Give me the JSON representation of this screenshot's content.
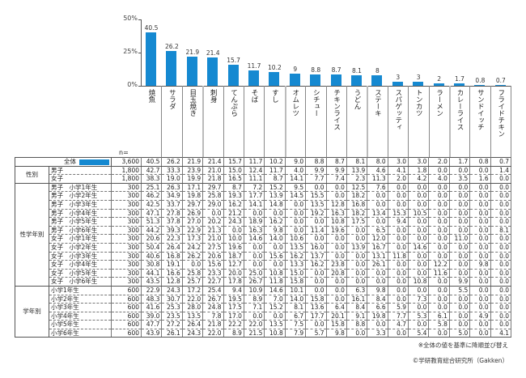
{
  "chart_data": {
    "type": "bar",
    "title": "",
    "ylim": [
      0,
      50
    ],
    "yticks": [
      "50%",
      "25%",
      "0%"
    ],
    "ytick_values": [
      50,
      25,
      0
    ],
    "categories": [
      "焼魚",
      "サラダ",
      "目玉焼き",
      "刺身",
      "てんぷら",
      "そば",
      "すし",
      "オムレツ",
      "シチュー",
      "チキンライス",
      "うどん",
      "ステーキ",
      "スパゲッティ",
      "トンカツ",
      "ラーメン",
      "カレーライス",
      "サンドイッチ",
      "フライドチキン"
    ],
    "values": [
      40.5,
      26.2,
      21.9,
      21.4,
      15.7,
      11.7,
      10.2,
      9.0,
      8.8,
      8.7,
      8.1,
      8.0,
      3.0,
      3.0,
      2.0,
      1.7,
      0.8,
      0.7
    ],
    "color": "#1589d1"
  },
  "table": {
    "n_header": "n=",
    "groups": [
      {
        "label": "",
        "rows": [
          {
            "label": "全体",
            "n": "3,600",
            "legend": true,
            "values": [
              "40.5",
              "26.2",
              "21.9",
              "21.4",
              "15.7",
              "11.7",
              "10.2",
              "9.0",
              "8.8",
              "8.7",
              "8.1",
              "8.0",
              "3.0",
              "3.0",
              "2.0",
              "1.7",
              "0.8",
              "0.7"
            ]
          }
        ]
      },
      {
        "label": "性別",
        "rows": [
          {
            "label": "男子",
            "n": "1,800",
            "values": [
              "42.7",
              "33.3",
              "23.9",
              "21.0",
              "15.0",
              "12.4",
              "11.7",
              "4.0",
              "9.9",
              "9.9",
              "13.9",
              "4.6",
              "4.1",
              "1.8",
              "0.0",
              "0.0",
              "0.0",
              "1.4"
            ]
          },
          {
            "label": "女子",
            "n": "1,800",
            "values": [
              "38.3",
              "19.0",
              "19.9",
              "21.8",
              "16.5",
              "11.1",
              "8.7",
              "14.1",
              "7.7",
              "7.4",
              "2.3",
              "11.3",
              "2.0",
              "4.2",
              "4.0",
              "3.5",
              "1.6",
              "0.0"
            ]
          }
        ]
      },
      {
        "label": "性学年別",
        "rows": [
          {
            "label": "男子　小学1年生",
            "n": "300",
            "values": [
              "25.1",
              "26.3",
              "17.1",
              "29.7",
              "8.7",
              "7.2",
              "15.2",
              "9.5",
              "0.0",
              "0.0",
              "12.5",
              "7.6",
              "0.0",
              "0.0",
              "0.0",
              "0.0",
              "0.0",
              "0.0"
            ]
          },
          {
            "label": "男子　小学2年生",
            "n": "300",
            "values": [
              "46.2",
              "34.9",
              "19.8",
              "25.8",
              "19.3",
              "17.7",
              "13.9",
              "14.5",
              "15.5",
              "0.0",
              "18.2",
              "0.0",
              "0.0",
              "0.0",
              "0.0",
              "0.0",
              "0.0",
              "0.0"
            ]
          },
          {
            "label": "男子　小学3年生",
            "n": "300",
            "values": [
              "42.5",
              "33.7",
              "29.7",
              "29.0",
              "16.2",
              "14.1",
              "14.8",
              "0.0",
              "13.5",
              "12.8",
              "16.8",
              "0.0",
              "0.0",
              "0.0",
              "0.0",
              "0.0",
              "0.0",
              "0.0"
            ]
          },
          {
            "label": "男子　小学4年生",
            "n": "300",
            "values": [
              "47.1",
              "27.8",
              "26.9",
              "0.0",
              "21.2",
              "0.0",
              "0.0",
              "0.0",
              "19.2",
              "16.3",
              "18.2",
              "13.4",
              "15.3",
              "10.5",
              "0.0",
              "0.0",
              "0.0",
              "0.0"
            ]
          },
          {
            "label": "男子　小学5年生",
            "n": "300",
            "values": [
              "51.3",
              "37.8",
              "27.0",
              "20.2",
              "24.3",
              "18.9",
              "16.2",
              "0.0",
              "0.0",
              "10.8",
              "17.5",
              "0.0",
              "9.4",
              "0.0",
              "0.0",
              "0.0",
              "0.0",
              "0.0"
            ]
          },
          {
            "label": "男子　小学6年生",
            "n": "300",
            "values": [
              "44.2",
              "39.3",
              "22.9",
              "21.3",
              "0.0",
              "16.3",
              "9.8",
              "0.0",
              "11.4",
              "19.6",
              "0.0",
              "6.5",
              "0.0",
              "0.0",
              "0.0",
              "0.0",
              "0.0",
              "8.1"
            ]
          },
          {
            "label": "女子　小学1年生",
            "n": "300",
            "values": [
              "20.6",
              "22.3",
              "17.3",
              "21.0",
              "10.0",
              "14.6",
              "14.0",
              "10.6",
              "0.0",
              "0.0",
              "0.0",
              "12.0",
              "0.0",
              "0.0",
              "0.0",
              "11.0",
              "0.0",
              "0.0"
            ]
          },
          {
            "label": "女子　小学2年生",
            "n": "300",
            "values": [
              "50.4",
              "26.4",
              "24.2",
              "27.5",
              "19.6",
              "0.0",
              "0.0",
              "13.5",
              "16.0",
              "0.0",
              "13.9",
              "16.7",
              "0.0",
              "14.6",
              "0.0",
              "0.0",
              "0.0",
              "0.0"
            ]
          },
          {
            "label": "女子　小学3年生",
            "n": "300",
            "values": [
              "40.6",
              "16.8",
              "26.2",
              "20.6",
              "18.7",
              "0.0",
              "15.6",
              "16.2",
              "13.7",
              "0.0",
              "0.0",
              "13.1",
              "11.8",
              "0.0",
              "0.0",
              "0.0",
              "0.0",
              "0.0"
            ]
          },
          {
            "label": "女子　小学4年生",
            "n": "300",
            "values": [
              "30.8",
              "19.1",
              "0.0",
              "15.6",
              "12.7",
              "0.0",
              "0.0",
              "13.3",
              "16.2",
              "23.8",
              "0.0",
              "26.1",
              "0.0",
              "0.0",
              "12.2",
              "0.0",
              "9.8",
              "0.0"
            ]
          },
          {
            "label": "女子　小学5年生",
            "n": "300",
            "values": [
              "44.1",
              "16.6",
              "25.8",
              "23.3",
              "20.0",
              "25.0",
              "10.8",
              "15.0",
              "0.0",
              "20.8",
              "0.0",
              "0.0",
              "0.0",
              "0.0",
              "11.6",
              "0.0",
              "0.0",
              "0.0"
            ]
          },
          {
            "label": "女子　小学6年生",
            "n": "300",
            "values": [
              "43.5",
              "12.8",
              "25.7",
              "22.7",
              "17.8",
              "26.7",
              "11.8",
              "15.8",
              "0.0",
              "0.0",
              "0.0",
              "0.0",
              "0.0",
              "10.8",
              "0.0",
              "9.9",
              "0.0",
              "0.0"
            ]
          }
        ]
      },
      {
        "label": "学年別",
        "rows": [
          {
            "label": "小学1年生",
            "n": "600",
            "values": [
              "22.9",
              "24.3",
              "17.2",
              "25.4",
              "9.4",
              "10.9",
              "14.6",
              "10.1",
              "0.0",
              "0.0",
              "6.3",
              "9.8",
              "0.0",
              "0.0",
              "0.0",
              "5.5",
              "0.0",
              "0.0"
            ]
          },
          {
            "label": "小学2年生",
            "n": "600",
            "values": [
              "48.3",
              "30.7",
              "22.0",
              "26.7",
              "19.5",
              "8.9",
              "7.0",
              "14.0",
              "15.8",
              "0.0",
              "16.1",
              "8.4",
              "0.0",
              "7.3",
              "0.0",
              "0.0",
              "0.0",
              "0.0"
            ]
          },
          {
            "label": "小学3年生",
            "n": "600",
            "values": [
              "41.6",
              "25.3",
              "28.0",
              "24.8",
              "17.5",
              "7.1",
              "15.2",
              "8.1",
              "13.6",
              "6.4",
              "8.4",
              "6.6",
              "5.9",
              "0.0",
              "0.0",
              "0.0",
              "0.0",
              "0.0"
            ]
          },
          {
            "label": "小学4年生",
            "n": "600",
            "values": [
              "39.0",
              "23.5",
              "13.5",
              "7.8",
              "17.0",
              "0.0",
              "0.0",
              "6.7",
              "17.7",
              "20.1",
              "9.1",
              "19.8",
              "7.7",
              "5.3",
              "6.1",
              "0.0",
              "4.9",
              "0.0"
            ]
          },
          {
            "label": "小学5年生",
            "n": "600",
            "values": [
              "47.7",
              "27.2",
              "26.4",
              "21.8",
              "22.2",
              "22.0",
              "13.5",
              "7.5",
              "0.0",
              "15.8",
              "8.8",
              "0.0",
              "4.7",
              "0.0",
              "5.8",
              "0.0",
              "0.0",
              "0.0"
            ]
          },
          {
            "label": "小学6年生",
            "n": "600",
            "values": [
              "43.9",
              "26.1",
              "24.3",
              "22.0",
              "8.9",
              "21.5",
              "10.8",
              "7.9",
              "5.7",
              "9.8",
              "0.0",
              "3.3",
              "0.0",
              "5.4",
              "0.0",
              "5.0",
              "0.0",
              "4.1"
            ]
          }
        ]
      }
    ]
  },
  "footnote": "※全体の値を基準に降順並び替え",
  "copyright": "©学研教育総合研究所（Gakken）"
}
